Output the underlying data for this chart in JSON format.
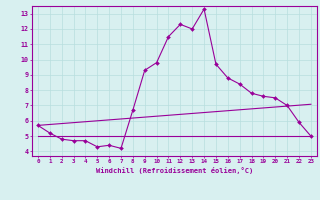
{
  "xlabel": "Windchill (Refroidissement éolien,°C)",
  "background_color": "#d8f0f0",
  "line_color": "#990099",
  "grid_color": "#b8dede",
  "xlim": [
    -0.5,
    23.5
  ],
  "ylim": [
    3.7,
    13.5
  ],
  "yticks": [
    4,
    5,
    6,
    7,
    8,
    9,
    10,
    11,
    12,
    13
  ],
  "xticks": [
    0,
    1,
    2,
    3,
    4,
    5,
    6,
    7,
    8,
    9,
    10,
    11,
    12,
    13,
    14,
    15,
    16,
    17,
    18,
    19,
    20,
    21,
    22,
    23
  ],
  "series1_x": [
    0,
    1,
    2,
    3,
    4,
    5,
    6,
    7,
    8,
    9,
    10,
    11,
    12,
    13,
    14,
    15,
    16,
    17,
    18,
    19,
    20,
    21,
    22,
    23
  ],
  "series1_y": [
    5.7,
    5.2,
    4.8,
    4.7,
    4.7,
    4.3,
    4.4,
    4.2,
    6.7,
    9.3,
    9.8,
    11.5,
    12.3,
    12.0,
    13.3,
    9.7,
    8.8,
    8.4,
    7.8,
    7.6,
    7.5,
    7.0,
    5.9,
    5.0
  ],
  "series2_x": [
    0,
    1,
    2,
    3,
    4,
    5,
    6,
    7,
    8,
    9,
    10,
    11,
    12,
    13,
    14,
    15,
    16,
    17,
    18,
    19,
    20,
    21,
    22,
    23
  ],
  "series2_y": [
    5.0,
    5.0,
    5.0,
    5.0,
    5.0,
    5.0,
    5.0,
    5.0,
    5.0,
    5.0,
    5.0,
    5.0,
    5.0,
    5.0,
    5.0,
    5.0,
    5.0,
    5.0,
    5.0,
    5.0,
    5.0,
    5.0,
    5.0,
    5.0
  ],
  "series3_x": [
    0,
    1,
    2,
    3,
    4,
    5,
    6,
    7,
    8,
    9,
    10,
    11,
    12,
    13,
    14,
    15,
    16,
    17,
    18,
    19,
    20,
    21,
    22,
    23
  ],
  "series3_y": [
    5.7,
    5.76,
    5.82,
    5.88,
    5.94,
    6.0,
    6.06,
    6.12,
    6.18,
    6.24,
    6.3,
    6.36,
    6.42,
    6.48,
    6.54,
    6.6,
    6.66,
    6.72,
    6.78,
    6.84,
    6.9,
    6.96,
    7.02,
    7.08
  ]
}
